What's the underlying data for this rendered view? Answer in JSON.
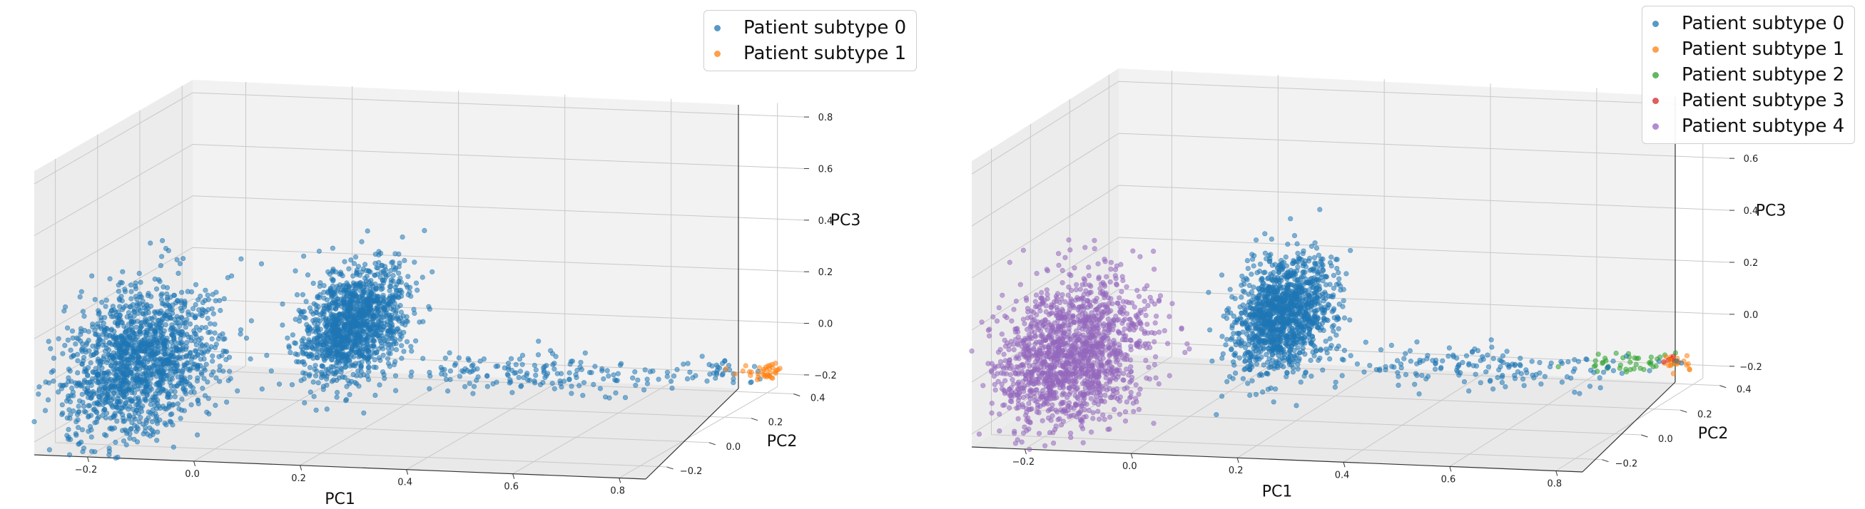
{
  "colors": {
    "subtype0": "#1f77b4",
    "subtype1": "#ff7f0e",
    "subtype2": "#2ca02c",
    "subtype3": "#d62728",
    "subtype4": "#9467bd",
    "pane": "#f2f2f2",
    "grid": "#c8c8c8"
  },
  "chart_data": [
    {
      "type": "scatter",
      "projection": "3d",
      "xlabel": "PC1",
      "ylabel": "PC2",
      "zlabel": "PC3",
      "xlim": [
        -0.3,
        0.85
      ],
      "ylim": [
        -0.3,
        0.45
      ],
      "zlim": [
        -0.25,
        0.85
      ],
      "xticks": [
        "−0.2",
        "0.0",
        "0.2",
        "0.4",
        "0.6",
        "0.8"
      ],
      "yticks": [
        "−0.2",
        "0.0",
        "0.2",
        "0.4"
      ],
      "zticks": [
        "−0.2",
        "0.0",
        "0.2",
        "0.4",
        "0.6",
        "0.8"
      ],
      "grid": true,
      "legend_position": "top-right",
      "series": [
        {
          "name": "Patient subtype 0",
          "color_key": "subtype0"
        },
        {
          "name": "Patient subtype 1",
          "color_key": "subtype1"
        }
      ],
      "clusters": [
        {
          "series": 0,
          "n": 1500,
          "center": [
            -0.2,
            -0.05,
            0.0
          ],
          "spread": [
            0.055,
            0.12,
            0.13
          ]
        },
        {
          "series": 0,
          "n": 1300,
          "center": [
            0.12,
            0.15,
            0.08
          ],
          "spread": [
            0.03,
            0.1,
            0.1
          ]
        },
        {
          "series": 0,
          "n": 180,
          "center": [
            0.5,
            0.05,
            -0.04
          ],
          "spread": [
            0.16,
            0.05,
            0.03
          ]
        },
        {
          "series": 0,
          "n": 30,
          "center": [
            0.8,
            0.15,
            -0.05
          ],
          "spread": [
            0.04,
            0.04,
            0.015
          ]
        },
        {
          "series": 1,
          "n": 36,
          "center": [
            0.88,
            0.17,
            -0.05
          ],
          "spread": [
            0.02,
            0.025,
            0.012
          ]
        }
      ]
    },
    {
      "type": "scatter",
      "projection": "3d",
      "xlabel": "PC1",
      "ylabel": "PC2",
      "zlabel": "PC3",
      "xlim": [
        -0.3,
        0.85
      ],
      "ylim": [
        -0.3,
        0.45
      ],
      "zlim": [
        -0.25,
        0.85
      ],
      "xticks": [
        "−0.2",
        "0.0",
        "0.2",
        "0.4",
        "0.6",
        "0.8"
      ],
      "yticks": [
        "−0.2",
        "0.0",
        "0.2",
        "0.4"
      ],
      "zticks": [
        "−0.2",
        "0.0",
        "0.2",
        "0.4",
        "0.6"
      ],
      "grid": true,
      "legend_position": "top-right",
      "series": [
        {
          "name": "Patient subtype 0",
          "color_key": "subtype0"
        },
        {
          "name": "Patient subtype 1",
          "color_key": "subtype1"
        },
        {
          "name": "Patient subtype 2",
          "color_key": "subtype2"
        },
        {
          "name": "Patient subtype 3",
          "color_key": "subtype3"
        },
        {
          "name": "Patient subtype 4",
          "color_key": "subtype4"
        }
      ],
      "clusters": [
        {
          "series": 4,
          "n": 1500,
          "center": [
            -0.2,
            -0.05,
            0.0
          ],
          "spread": [
            0.055,
            0.12,
            0.13
          ]
        },
        {
          "series": 0,
          "n": 1300,
          "center": [
            0.12,
            0.15,
            0.08
          ],
          "spread": [
            0.03,
            0.1,
            0.1
          ]
        },
        {
          "series": 0,
          "n": 170,
          "center": [
            0.5,
            0.05,
            -0.04
          ],
          "spread": [
            0.16,
            0.05,
            0.03
          ]
        },
        {
          "series": 2,
          "n": 40,
          "center": [
            0.76,
            0.15,
            -0.05
          ],
          "spread": [
            0.04,
            0.03,
            0.015
          ]
        },
        {
          "series": 3,
          "n": 6,
          "center": [
            0.83,
            0.17,
            -0.04
          ],
          "spread": [
            0.01,
            0.01,
            0.008
          ]
        },
        {
          "series": 1,
          "n": 22,
          "center": [
            0.86,
            0.17,
            -0.05
          ],
          "spread": [
            0.015,
            0.02,
            0.01
          ]
        }
      ]
    }
  ]
}
